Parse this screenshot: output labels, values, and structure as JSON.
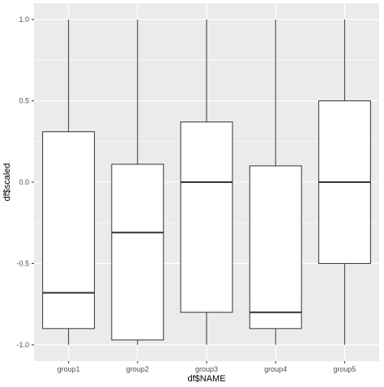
{
  "chart_data": {
    "type": "boxplot",
    "title": "",
    "xlabel": "df$NAME",
    "ylabel": "df$scaled",
    "categories": [
      "group1",
      "group2",
      "group3",
      "group4",
      "group5"
    ],
    "boxes": [
      {
        "min": -1.0,
        "q1": -0.9,
        "median": -0.68,
        "q3": 0.31,
        "max": 1.0
      },
      {
        "min": -1.0,
        "q1": -0.97,
        "median": -0.31,
        "q3": 0.11,
        "max": 1.0
      },
      {
        "min": -1.0,
        "q1": -0.8,
        "median": 0.0,
        "q3": 0.37,
        "max": 1.0
      },
      {
        "min": -1.0,
        "q1": -0.9,
        "median": -0.8,
        "q3": 0.1,
        "max": 1.0
      },
      {
        "min": -1.0,
        "q1": -0.5,
        "median": 0.0,
        "q3": 0.5,
        "max": 1.0
      }
    ],
    "yticks": [
      -1.0,
      -0.5,
      0.0,
      0.5,
      1.0
    ],
    "ytick_labels": [
      "-1.0",
      "-0.5",
      "0.0",
      "0.5",
      "1.0"
    ],
    "ylim": [
      -1.1,
      1.1
    ],
    "grid": true,
    "colors": {
      "panel": "#ebebeb",
      "grid_major": "#ffffff",
      "box_fill": "#ffffff",
      "box_stroke": "#333333"
    }
  }
}
